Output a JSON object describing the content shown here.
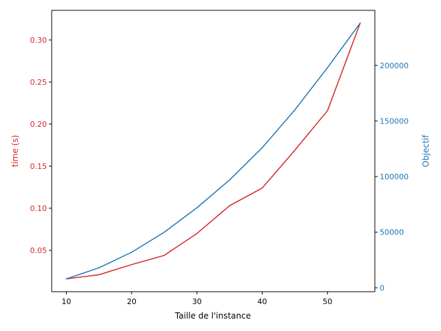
{
  "chart_data": {
    "type": "line",
    "x": [
      10,
      15,
      20,
      25,
      30,
      35,
      40,
      45,
      50,
      55
    ],
    "xlabel": "Taille de l'instance",
    "xlim": [
      7.75,
      57.25
    ],
    "xticks": [
      10,
      20,
      30,
      40,
      50
    ],
    "series": [
      {
        "axis": "left",
        "color": "#d62728",
        "values": [
          0.016,
          0.021,
          0.033,
          0.044,
          0.07,
          0.103,
          0.124,
          0.169,
          0.216,
          0.32
        ]
      },
      {
        "axis": "right",
        "color": "#1f77b4",
        "values": [
          8000,
          18000,
          32000,
          50000,
          72000,
          97000,
          126000,
          160000,
          198000,
          238000
        ]
      }
    ],
    "left_axis": {
      "label": "time (s)",
      "color": "#d62728",
      "ylim": [
        0.0008,
        0.3352
      ],
      "ticks": [
        "0.05",
        "0.10",
        "0.15",
        "0.20",
        "0.25",
        "0.30"
      ]
    },
    "right_axis": {
      "label": "Objectif",
      "color": "#1f77b4",
      "ylim": [
        -3500,
        249500
      ],
      "ticks": [
        "0",
        "50000",
        "100000",
        "150000",
        "200000"
      ]
    },
    "grid": false,
    "legend": "none"
  }
}
